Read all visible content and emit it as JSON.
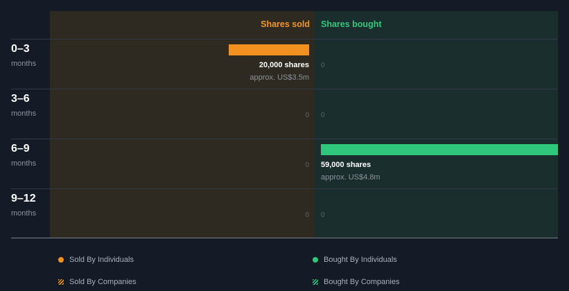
{
  "header": {
    "sold_label": "Shares sold",
    "bought_label": "Shares bought"
  },
  "rows": [
    {
      "range": "0–3",
      "unit": "months",
      "sold_zero": "0",
      "bought_zero": "0"
    },
    {
      "range": "3–6",
      "unit": "months",
      "sold_zero": "0",
      "bought_zero": "0"
    },
    {
      "range": "6–9",
      "unit": "months",
      "sold_zero": "0",
      "bought_zero": "0"
    },
    {
      "range": "9–12",
      "unit": "months",
      "sold_zero": "0",
      "bought_zero": "0"
    }
  ],
  "transactions": {
    "sold_0_3": {
      "shares": "20,000 shares",
      "approx": "approx. US$3.5m"
    },
    "bought_6_9": {
      "shares": "59,000 shares",
      "approx": "approx. US$4.8m"
    }
  },
  "legend": {
    "sold_individuals": "Sold By Individuals",
    "bought_individuals": "Bought By Individuals",
    "sold_companies": "Sold By Companies",
    "bought_companies": "Bought By Companies"
  },
  "colors": {
    "sold": "#f39120",
    "bought": "#2fc77b"
  },
  "chart_data": {
    "type": "bar",
    "orientation": "horizontal",
    "categories": [
      "0–3 months",
      "3–6 months",
      "6–9 months",
      "9–12 months"
    ],
    "series": [
      {
        "name": "Shares sold",
        "values": [
          20000,
          0,
          0,
          0
        ]
      },
      {
        "name": "Shares bought",
        "values": [
          0,
          0,
          59000,
          0
        ]
      }
    ],
    "value_labels": {
      "sold": [
        "approx. US$3.5m",
        "0",
        "0",
        "0"
      ],
      "bought": [
        "0",
        "0",
        "approx. US$4.8m",
        "0"
      ]
    },
    "xmax": 59000
  }
}
